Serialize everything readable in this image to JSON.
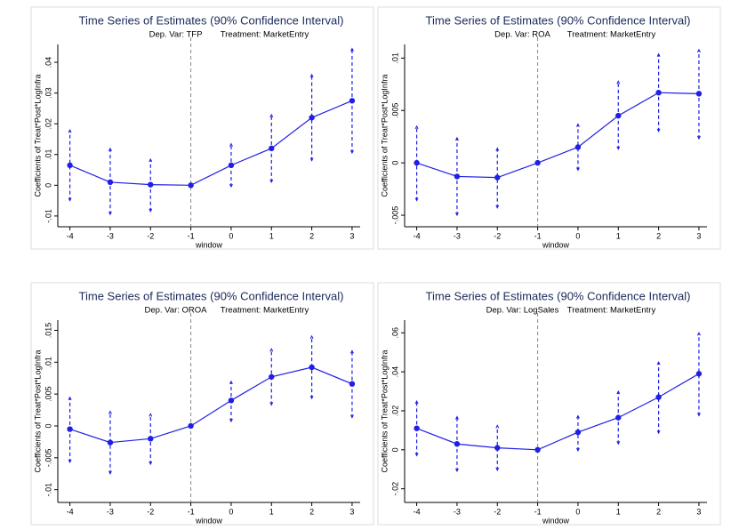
{
  "chart_data": [
    {
      "type": "line",
      "title": "Time Series of Estimates (90% Confidence Interval)",
      "dep_var": "Dep. Var: TFP",
      "treatment": "Treatment: MarketEntry",
      "ylabel": "Coefficients of Treat*Post*LogInfra",
      "xlabel": "window",
      "color": "#1f1fe6",
      "x": [
        -4,
        -3,
        -2,
        -1,
        0,
        1,
        2,
        3
      ],
      "values": [
        0.0065,
        0.001,
        0.0002,
        0,
        0.0065,
        0.012,
        0.022,
        0.0275
      ],
      "ci_low": [
        -0.005,
        -0.0095,
        -0.0085,
        null,
        -0.0005,
        0.001,
        0.008,
        0.0105
      ],
      "ci_high": [
        0.018,
        0.012,
        0.0085,
        null,
        0.0135,
        0.023,
        0.036,
        0.0445
      ],
      "xline": -1,
      "xlim": [
        -4.3,
        3.2
      ],
      "xticks": [
        -4,
        -3,
        -2,
        -1,
        0,
        1,
        2,
        3
      ],
      "ylim": [
        -0.0135,
        0.0458
      ],
      "yticks": [
        {
          "value": -0.01,
          "label": "-.01"
        },
        0,
        {
          "value": 0.01,
          "label": ".01"
        },
        {
          "value": 0.02,
          "label": ".02"
        },
        {
          "value": 0.03,
          "label": ".03"
        },
        {
          "value": 0.04,
          "label": ".04"
        }
      ]
    },
    {
      "type": "line",
      "title": "Time Series of Estimates (90% Confidence Interval)",
      "dep_var": "Dep. Var: ROA",
      "treatment": "Treatment: MarketEntry",
      "ylabel": "Coefficients of Treat*Post*LogInfra",
      "xlabel": "window",
      "color": "#1f1fe6",
      "x": [
        -4,
        -3,
        -2,
        -1,
        0,
        1,
        2,
        3
      ],
      "values": [
        0,
        -0.0013,
        -0.0014,
        0,
        0.0015,
        0.0045,
        0.0067,
        0.0066
      ],
      "ci_low": [
        -0.0036,
        -0.005,
        -0.0043,
        null,
        -0.0007,
        0.0013,
        0.003,
        0.0023
      ],
      "ci_high": [
        0.0035,
        0.0024,
        0.0014,
        null,
        0.0037,
        0.0078,
        0.0104,
        0.0108
      ],
      "xline": -1,
      "xlim": [
        -4.3,
        3.2
      ],
      "xticks": [
        -4,
        -3,
        -2,
        -1,
        0,
        1,
        2,
        3
      ],
      "ylim": [
        -0.0061,
        0.0113
      ],
      "yticks": [
        {
          "value": -0.005,
          "label": "-.005"
        },
        0,
        {
          "value": 0.005,
          "label": ".005"
        },
        {
          "value": 0.01,
          "label": ".01"
        }
      ]
    },
    {
      "type": "line",
      "title": "Time Series of Estimates (90% Confidence Interval)",
      "dep_var": "Dep. Var: OROA",
      "treatment": "Treatment: MarketEntry",
      "ylabel": "Coefficients of Treat*Post*LogInfra",
      "xlabel": "window",
      "color": "#1f1fe6",
      "x": [
        -4,
        -3,
        -2,
        -1,
        0,
        1,
        2,
        3
      ],
      "values": [
        -0.0005,
        -0.0026,
        -0.002,
        0,
        0.004,
        0.0077,
        0.0092,
        0.0066
      ],
      "ci_low": [
        -0.0057,
        -0.0075,
        -0.006,
        null,
        0.0007,
        0.0033,
        0.0043,
        0.0013
      ],
      "ci_high": [
        0.0045,
        0.0023,
        0.0019,
        null,
        0.007,
        0.0121,
        0.0141,
        0.0118
      ],
      "xline": -1,
      "xlim": [
        -4.3,
        3.2
      ],
      "xticks": [
        -4,
        -3,
        -2,
        -1,
        0,
        1,
        2,
        3
      ],
      "ylim": [
        -0.012,
        0.0166
      ],
      "yticks": [
        {
          "value": -0.01,
          "label": "-.01"
        },
        {
          "value": -0.005,
          "label": "-.005"
        },
        0,
        {
          "value": 0.005,
          "label": ".005"
        },
        {
          "value": 0.01,
          "label": ".01"
        },
        {
          "value": 0.015,
          "label": ".015"
        }
      ]
    },
    {
      "type": "line",
      "title": "Time Series of Estimates (90% Confidence Interval)",
      "dep_var": "Dep. Var: LogSales",
      "treatment": "Treatment: MarketEntry",
      "ylabel": "Coefficients of Treat*Post*LogInfra",
      "xlabel": "window",
      "color": "#1f1fe6",
      "x": [
        -4,
        -3,
        -2,
        -1,
        0,
        1,
        2,
        3
      ],
      "values": [
        0.011,
        0.003,
        0.001,
        0,
        0.009,
        0.0165,
        0.027,
        0.039
      ],
      "ci_low": [
        -0.003,
        -0.011,
        -0.0105,
        null,
        -0.0005,
        0.003,
        0.0085,
        0.0175
      ],
      "ci_high": [
        0.025,
        0.017,
        0.0125,
        null,
        0.0175,
        0.03,
        0.045,
        0.06
      ],
      "xline": -1,
      "xlim": [
        -4.3,
        3.2
      ],
      "xticks": [
        -4,
        -3,
        -2,
        -1,
        0,
        1,
        2,
        3
      ],
      "ylim": [
        -0.027,
        0.0665
      ],
      "yticks": [
        {
          "value": -0.02,
          "label": "-.02"
        },
        0,
        {
          "value": 0.02,
          "label": ".02"
        },
        {
          "value": 0.04,
          "label": ".04"
        },
        {
          "value": 0.06,
          "label": ".06"
        }
      ]
    }
  ]
}
